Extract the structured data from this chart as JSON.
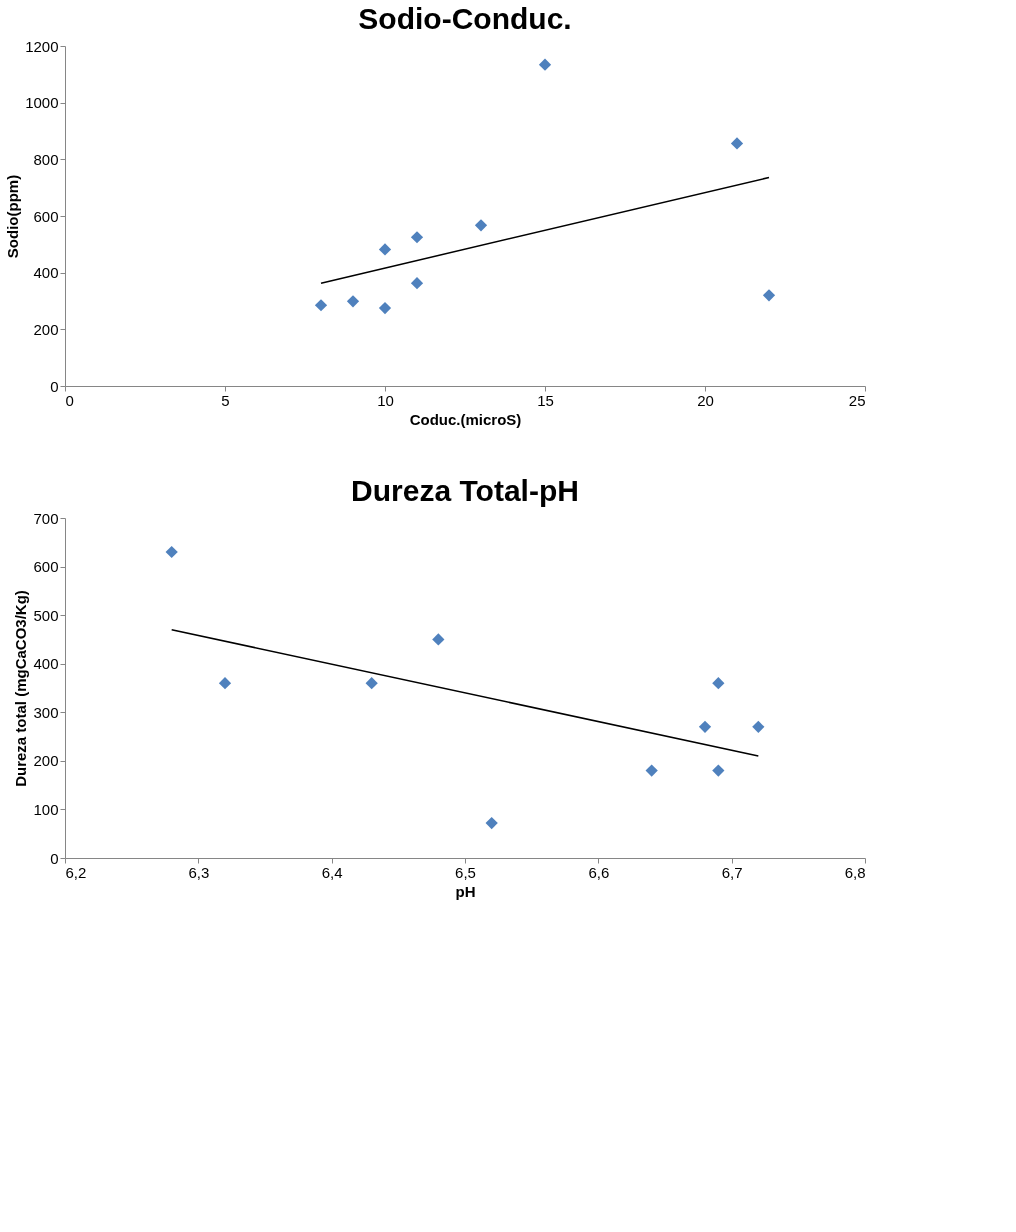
{
  "chart_data": [
    {
      "type": "scatter",
      "title": "Sodio-Conduc.",
      "xlabel": "Coduc.(microS)",
      "ylabel": "Sodio(ppm)",
      "xlim": [
        0,
        25
      ],
      "xticks": [
        0,
        5,
        10,
        15,
        20,
        25
      ],
      "ylim": [
        0,
        1200
      ],
      "yticks": [
        0,
        200,
        400,
        600,
        800,
        1000,
        1200
      ],
      "grid": false,
      "marker": "diamond",
      "series": [
        {
          "color": "#4f81bd",
          "x": [
            8,
            9,
            10,
            10,
            11,
            11,
            13,
            15,
            21,
            22
          ],
          "values": [
            285,
            299,
            275,
            482,
            525,
            363,
            567,
            1134,
            856,
            320
          ]
        },
        {
          "type": "line",
          "marker": "none",
          "color": "#000000",
          "x": [
            8,
            22
          ],
          "values": [
            363,
            736
          ]
        }
      ]
    },
    {
      "type": "scatter",
      "title": "Dureza Total-pH",
      "xlabel": "pH",
      "ylabel": "Dureza total (mgCaCO3/Kg)",
      "xlim": [
        6.2,
        6.8
      ],
      "xticks": [
        {
          "value": 6.2,
          "label": "6,2"
        },
        {
          "value": 6.3,
          "label": "6,3"
        },
        {
          "value": 6.4,
          "label": "6,4"
        },
        {
          "value": 6.5,
          "label": "6,5"
        },
        {
          "value": 6.6,
          "label": "6,6"
        },
        {
          "value": 6.7,
          "label": "6,7"
        },
        {
          "value": 6.8,
          "label": "6,8"
        }
      ],
      "ylim": [
        0,
        700
      ],
      "yticks": [
        0,
        100,
        200,
        300,
        400,
        500,
        600,
        700
      ],
      "grid": false,
      "marker": "diamond",
      "series": [
        {
          "color": "#4f81bd",
          "x": [
            6.28,
            6.32,
            6.43,
            6.48,
            6.52,
            6.64,
            6.68,
            6.69,
            6.69,
            6.72
          ],
          "values": [
            630,
            360,
            360,
            450,
            72,
            180,
            270,
            360,
            180,
            270
          ]
        },
        {
          "type": "line",
          "marker": "none",
          "color": "#000000",
          "x": [
            6.28,
            6.72
          ],
          "values": [
            470,
            210
          ]
        }
      ]
    }
  ]
}
